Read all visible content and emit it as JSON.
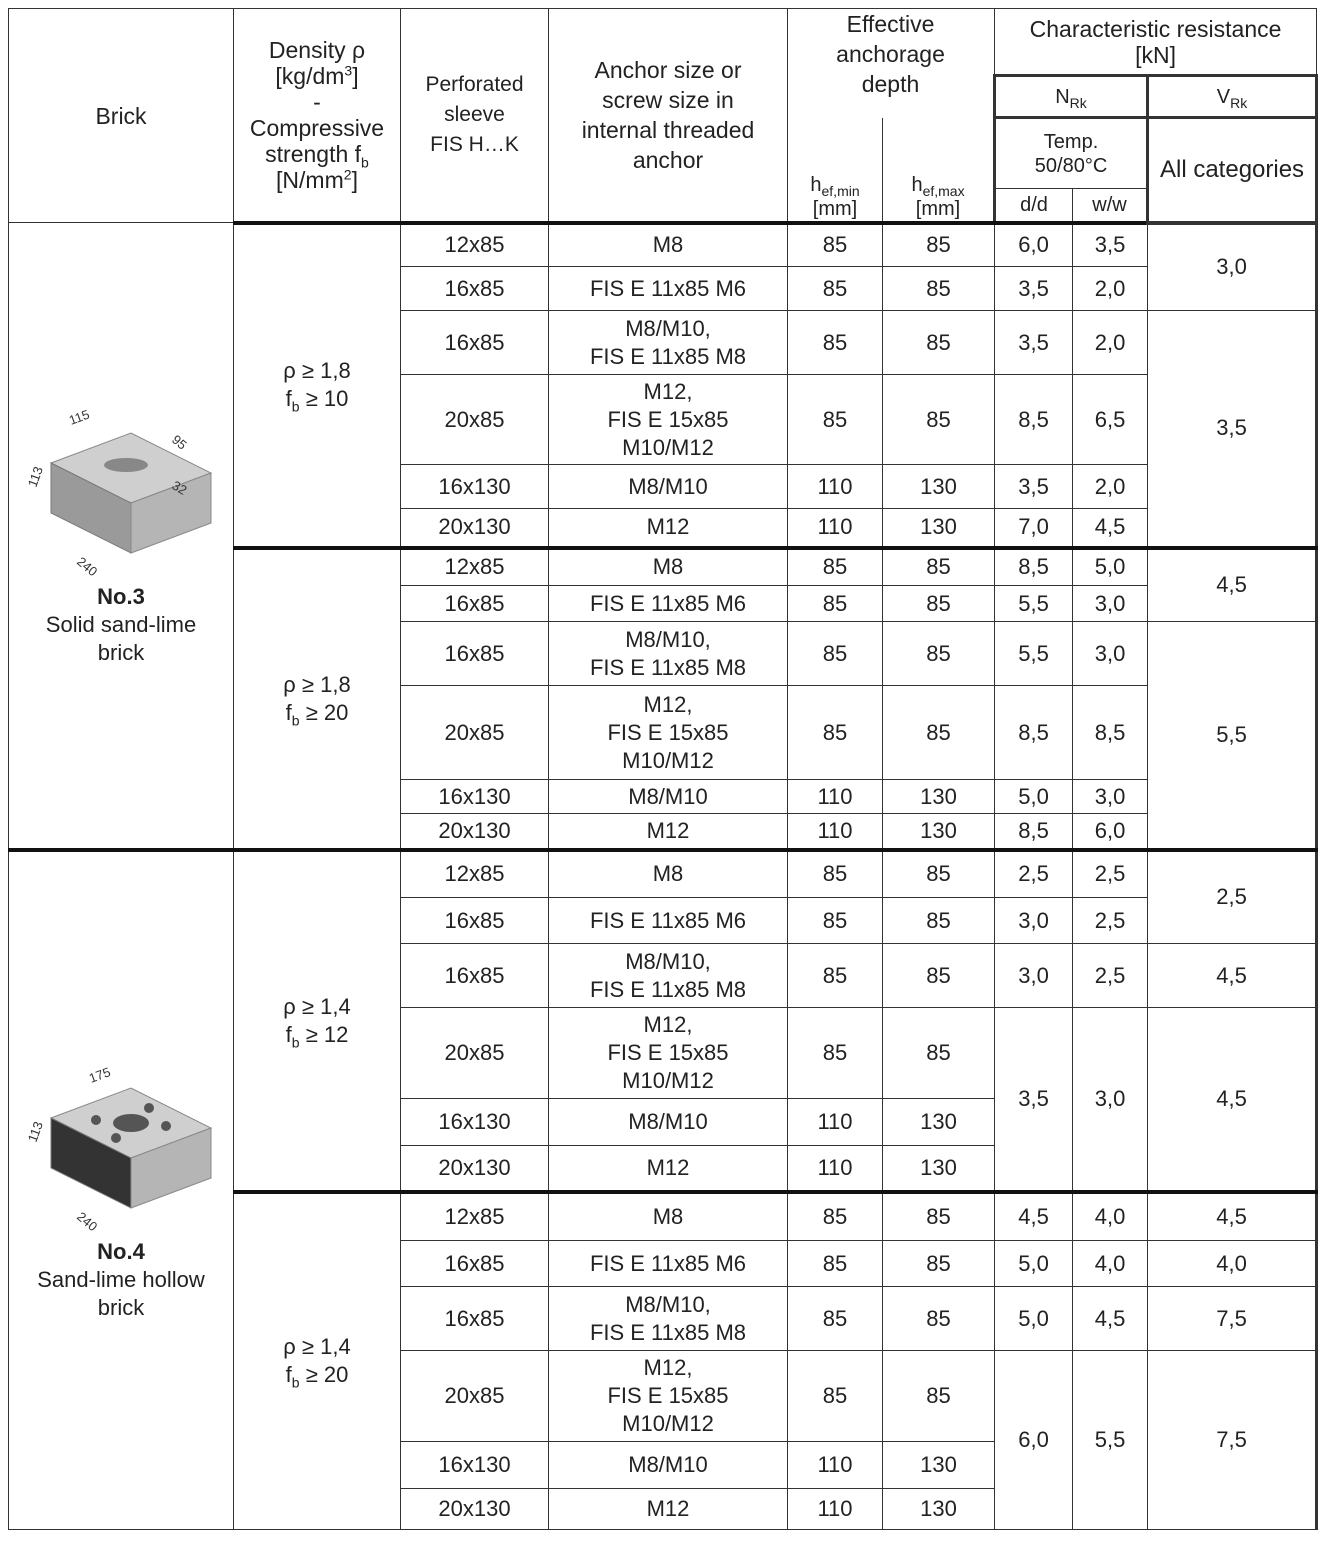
{
  "header": {
    "brick": "Brick",
    "density": [
      "Density ρ",
      "[kg/dm",
      "3",
      "]",
      "-",
      "Compressive",
      "strength f",
      "b",
      "[N/mm",
      "2",
      "]"
    ],
    "sleeve": "Perforated\nsleeve\nFIS H…K",
    "anchor": "Anchor size or\nscrew size in\ninternal threaded\nanchor",
    "depth": "Effective\nanchorage\ndepth",
    "h_min": [
      "h",
      "ef,min",
      "[mm]"
    ],
    "h_max": [
      "h",
      "ef,max",
      "[mm]"
    ],
    "resistance": "Characteristic resistance\n[kN]",
    "n_rk": [
      "N",
      "Rk"
    ],
    "v_rk": [
      "V",
      "Rk"
    ],
    "temp": "Temp.\n50/80°C",
    "all": "All categories",
    "dd": "d/d",
    "ww": "w/w"
  },
  "bricks": [
    {
      "number": "No.3",
      "name": "Solid sand-lime\nbrick",
      "dims": [
        "115",
        "95",
        "113",
        "32",
        "240"
      ],
      "groups": [
        {
          "density": [
            "ρ ≥ 1,8",
            "f",
            "b",
            "≥ 10"
          ],
          "rows": [
            {
              "sleeve": "12x85",
              "anchor": "M8",
              "h_min": 85,
              "h_max": 85,
              "dd": "6,0",
              "ww": "3,5",
              "vrk": "3,0"
            },
            {
              "sleeve": "16x85",
              "anchor": "FIS E 11x85 M6",
              "h_min": 85,
              "h_max": 85,
              "dd": "3,5",
              "ww": "2,0"
            },
            {
              "sleeve": "16x85",
              "anchor": "M8/M10,\nFIS E 11x85 M8",
              "h_min": 85,
              "h_max": 85,
              "dd": "3,5",
              "ww": "2,0",
              "vrk": "3,5"
            },
            {
              "sleeve": "20x85",
              "anchor": "M12,\nFIS E 15x85\nM10/M12",
              "h_min": 85,
              "h_max": 85,
              "dd": "8,5",
              "ww": "6,5"
            },
            {
              "sleeve": "16x130",
              "anchor": "M8/M10",
              "h_min": 110,
              "h_max": 130,
              "dd": "3,5",
              "ww": "2,0"
            },
            {
              "sleeve": "20x130",
              "anchor": "M12",
              "h_min": 110,
              "h_max": 130,
              "dd": "7,0",
              "ww": "4,5"
            }
          ]
        },
        {
          "density": [
            "ρ ≥ 1,8",
            "f",
            "b",
            "≥ 20"
          ],
          "rows": [
            {
              "sleeve": "12x85",
              "anchor": "M8",
              "h_min": 85,
              "h_max": 85,
              "dd": "8,5",
              "ww": "5,0",
              "vrk": "4,5"
            },
            {
              "sleeve": "16x85",
              "anchor": "FIS E 11x85 M6",
              "h_min": 85,
              "h_max": 85,
              "dd": "5,5",
              "ww": "3,0"
            },
            {
              "sleeve": "16x85",
              "anchor": "M8/M10,\nFIS E 11x85 M8",
              "h_min": 85,
              "h_max": 85,
              "dd": "5,5",
              "ww": "3,0",
              "vrk": "5,5"
            },
            {
              "sleeve": "20x85",
              "anchor": "M12,\nFIS E 15x85\nM10/M12",
              "h_min": 85,
              "h_max": 85,
              "dd": "8,5",
              "ww": "8,5"
            },
            {
              "sleeve": "16x130",
              "anchor": "M8/M10",
              "h_min": 110,
              "h_max": 130,
              "dd": "5,0",
              "ww": "3,0"
            },
            {
              "sleeve": "20x130",
              "anchor": "M12",
              "h_min": 110,
              "h_max": 130,
              "dd": "8,5",
              "ww": "6,0"
            }
          ]
        }
      ]
    },
    {
      "number": "No.4",
      "name": "Sand-lime hollow\nbrick",
      "dims": [
        "175",
        "113",
        "240"
      ],
      "groups": [
        {
          "density": [
            "ρ ≥ 1,4",
            "f",
            "b",
            "≥ 12"
          ],
          "rows": [
            {
              "sleeve": "12x85",
              "anchor": "M8",
              "h_min": 85,
              "h_max": 85,
              "dd": "2,5",
              "ww": "2,5",
              "vrk": "2,5"
            },
            {
              "sleeve": "16x85",
              "anchor": "FIS E 11x85 M6",
              "h_min": 85,
              "h_max": 85,
              "dd": "3,0",
              "ww": "2,5"
            },
            {
              "sleeve": "16x85",
              "anchor": "M8/M10,\nFIS E 11x85 M8",
              "h_min": 85,
              "h_max": 85,
              "dd": "3,0",
              "ww": "2,5",
              "vrk": "4,5"
            },
            {
              "sleeve": "20x85",
              "anchor": "M12,\nFIS E 15x85\nM10/M12",
              "h_min": 85,
              "h_max": 85,
              "dd": "3,5",
              "ww": "3,0",
              "vrk": "4,5"
            },
            {
              "sleeve": "16x130",
              "anchor": "M8/M10",
              "h_min": 110,
              "h_max": 130
            },
            {
              "sleeve": "20x130",
              "anchor": "M12",
              "h_min": 110,
              "h_max": 130
            }
          ]
        },
        {
          "density": [
            "ρ ≥ 1,4",
            "f",
            "b",
            "≥ 20"
          ],
          "rows": [
            {
              "sleeve": "12x85",
              "anchor": "M8",
              "h_min": 85,
              "h_max": 85,
              "dd": "4,5",
              "ww": "4,0",
              "vrk": "4,5"
            },
            {
              "sleeve": "16x85",
              "anchor": "FIS E 11x85 M6",
              "h_min": 85,
              "h_max": 85,
              "dd": "5,0",
              "ww": "4,0",
              "vrk": "4,0"
            },
            {
              "sleeve": "16x85",
              "anchor": "M8/M10,\nFIS E 11x85 M8",
              "h_min": 85,
              "h_max": 85,
              "dd": "5,0",
              "ww": "4,5",
              "vrk": "7,5"
            },
            {
              "sleeve": "20x85",
              "anchor": "M12,\nFIS E 15x85\nM10/M12",
              "h_min": 85,
              "h_max": 85,
              "dd": "6,0",
              "ww": "5,5",
              "vrk": "7,5"
            },
            {
              "sleeve": "16x130",
              "anchor": "M8/M10",
              "h_min": 110,
              "h_max": 130
            },
            {
              "sleeve": "20x130",
              "anchor": "M12",
              "h_min": 110,
              "h_max": 130
            }
          ]
        }
      ]
    }
  ]
}
